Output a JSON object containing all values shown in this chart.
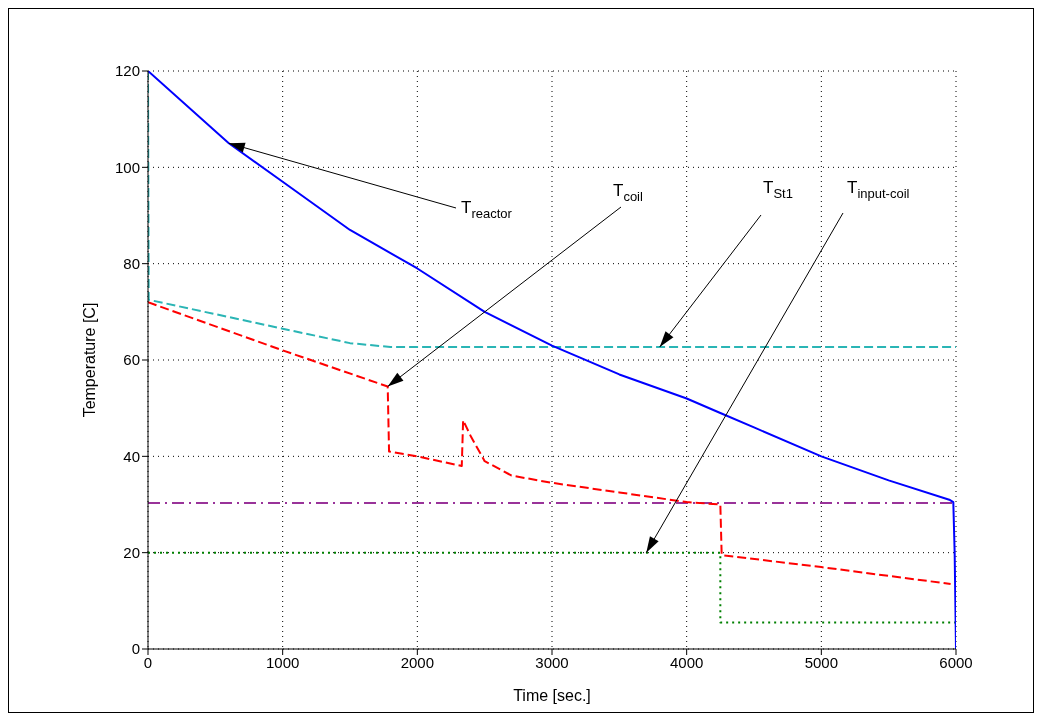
{
  "chart_data": {
    "type": "line",
    "xlabel": "Time [sec.]",
    "ylabel": "Temperature [C]",
    "xlim": [
      0,
      6000
    ],
    "ylim": [
      0,
      120
    ],
    "xticks": [
      0,
      1000,
      2000,
      3000,
      4000,
      5000,
      6000
    ],
    "yticks": [
      0,
      20,
      40,
      60,
      80,
      100,
      120
    ],
    "grid": true,
    "marker": "none",
    "annotations": [
      {
        "text": "T$_{reactor}$",
        "x": 600,
        "y": 105
      },
      {
        "text": "T$_{coil}$",
        "x": 1780,
        "y": 54.5
      },
      {
        "text": "T$_{St1}$",
        "x": 3800,
        "y": 62.7
      },
      {
        "text": "T$_{input-coil}$",
        "x": 3700,
        "y": 20
      }
    ],
    "series": [
      {
        "color": "#0000ff",
        "line_style": "solid",
        "x": [
          0,
          600,
          1000,
          1500,
          2000,
          2500,
          3000,
          3500,
          4000,
          4250,
          4500,
          5000,
          5500,
          5950,
          5980,
          5990,
          6000
        ],
        "values": [
          120,
          105,
          97,
          87,
          79,
          70,
          63,
          57,
          52,
          49,
          46,
          40,
          35,
          31,
          30.5,
          20,
          0
        ]
      },
      {
        "color": "#ff0000",
        "line_style": "dashed",
        "x": [
          0,
          1000,
          1780,
          1790,
          2000,
          2330,
          2340,
          2400,
          2500,
          2700,
          3000,
          3500,
          4000,
          4250,
          4260,
          5000,
          5960
        ],
        "values": [
          72,
          62,
          54.5,
          41,
          40,
          38,
          47.5,
          44,
          39,
          36,
          34.5,
          32.5,
          30.5,
          30,
          19.5,
          17,
          13.5
        ]
      },
      {
        "color": "#2ab5b5",
        "line_style": "dashed",
        "x": [
          0,
          5,
          1000,
          1500,
          1800,
          3800,
          6000
        ],
        "values": [
          120,
          72.5,
          66.5,
          63.5,
          62.7,
          62.7,
          62.7
        ]
      },
      {
        "color": "#008000",
        "line_style": "dotted",
        "x": [
          0,
          3700,
          4250,
          4250,
          6000
        ],
        "values": [
          20,
          20,
          20,
          5.5,
          5.5
        ]
      },
      {
        "color": "#993399",
        "line_style": "dashdot",
        "x": [
          0,
          6000
        ],
        "values": [
          30.3,
          30.3
        ]
      }
    ]
  }
}
